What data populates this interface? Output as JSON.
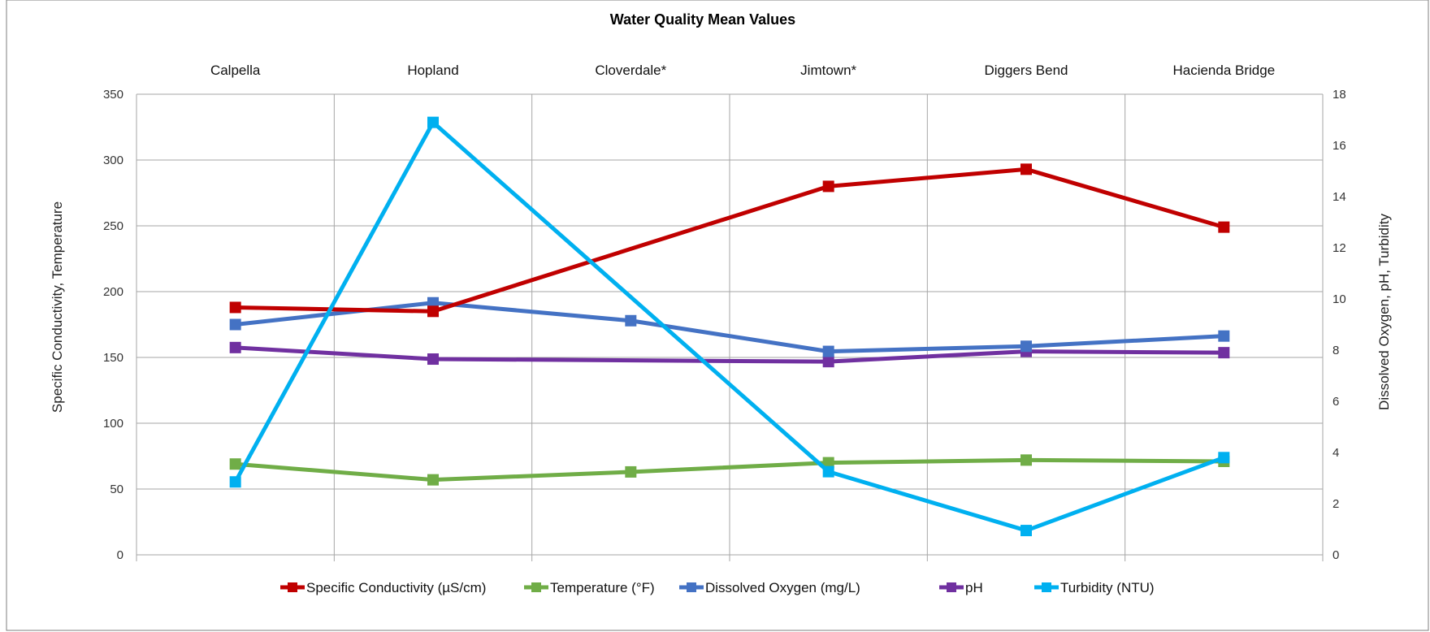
{
  "chart_data": {
    "type": "line",
    "title": "Water Quality Mean Values",
    "categories": [
      "Calpella",
      "Hopland",
      "Cloverdale*",
      "Jimtown*",
      "Diggers Bend",
      "Hacienda Bridge"
    ],
    "y_left": {
      "label": "Specific Conductivity, Temperature",
      "range": [
        0,
        350
      ],
      "ticks": [
        0,
        50,
        100,
        150,
        200,
        250,
        300,
        350
      ]
    },
    "y_right": {
      "label": "Dissolved Oxygen, pH, Turbidity",
      "range": [
        0,
        18
      ],
      "ticks": [
        0,
        2,
        4,
        6,
        8,
        10,
        12,
        14,
        16,
        18
      ]
    },
    "grid": true,
    "legend_position": "bottom",
    "series": [
      {
        "name": "Specific Conductivity (µS/cm)",
        "axis": "left",
        "color": "#C00000",
        "values": [
          188,
          185,
          null,
          280,
          293,
          249
        ]
      },
      {
        "name": "Temperature  (°F)",
        "axis": "left",
        "color": "#70AD47",
        "values": [
          69,
          57,
          63,
          70,
          72,
          71
        ]
      },
      {
        "name": "Dissolved Oxygen (mg/L)",
        "axis": "right",
        "color": "#4472C4",
        "values": [
          9.0,
          9.85,
          9.15,
          7.95,
          8.15,
          8.55
        ]
      },
      {
        "name": "pH",
        "axis": "right",
        "color": "#7030A0",
        "values": [
          8.1,
          7.65,
          null,
          7.55,
          7.95,
          7.9
        ]
      },
      {
        "name": "Turbidity (NTU)",
        "axis": "right",
        "color": "#00B0F0",
        "values": [
          2.85,
          16.9,
          null,
          3.25,
          0.95,
          3.8
        ]
      }
    ]
  }
}
